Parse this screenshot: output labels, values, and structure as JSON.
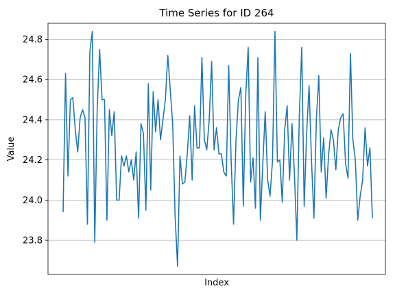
{
  "chart_data": {
    "type": "line",
    "title": "Time Series for ID 264",
    "xlabel": "Index",
    "ylabel": "Value",
    "ylim": [
      23.63,
      24.88
    ],
    "yticks": [
      23.8,
      24.0,
      24.2,
      24.4,
      24.6,
      24.8
    ],
    "ytick_labels": [
      "23.8",
      "24.0",
      "24.2",
      "24.4",
      "24.6",
      "24.8"
    ],
    "grid": "y",
    "x_ticks_visible": false,
    "series": [
      {
        "name": "ID 264",
        "color": "#1f77b4",
        "values": [
          23.94,
          24.63,
          24.12,
          24.5,
          24.51,
          24.35,
          24.24,
          24.41,
          24.45,
          24.41,
          23.88,
          24.74,
          24.84,
          23.79,
          24.45,
          24.75,
          24.5,
          24.5,
          23.9,
          24.45,
          24.32,
          24.44,
          24.0,
          24.0,
          24.22,
          24.17,
          24.22,
          24.14,
          24.2,
          24.1,
          24.24,
          23.91,
          24.38,
          24.33,
          23.95,
          24.58,
          24.05,
          24.54,
          24.34,
          24.5,
          24.3,
          24.4,
          24.5,
          24.72,
          24.55,
          24.38,
          23.92,
          23.67,
          24.22,
          24.08,
          24.09,
          24.23,
          24.42,
          24.1,
          24.47,
          24.26,
          24.26,
          24.71,
          24.3,
          24.25,
          24.4,
          24.69,
          24.25,
          24.36,
          24.23,
          24.23,
          24.14,
          24.12,
          24.67,
          24.2,
          23.88,
          24.3,
          24.5,
          24.56,
          23.97,
          24.52,
          24.76,
          24.09,
          24.21,
          23.96,
          24.71,
          23.9,
          24.18,
          24.44,
          24.1,
          24.02,
          24.2,
          24.84,
          24.19,
          24.2,
          23.99,
          24.35,
          24.47,
          24.1,
          24.38,
          24.13,
          23.8,
          24.42,
          24.76,
          23.97,
          24.33,
          24.57,
          24.2,
          23.91,
          24.4,
          24.62,
          24.14,
          24.31,
          24.01,
          24.22,
          24.35,
          24.3,
          24.15,
          24.35,
          24.41,
          24.43,
          24.18,
          24.11,
          24.73,
          24.3,
          24.2,
          23.9,
          24.02,
          24.1,
          24.36,
          24.17,
          24.26,
          23.91
        ]
      }
    ]
  }
}
